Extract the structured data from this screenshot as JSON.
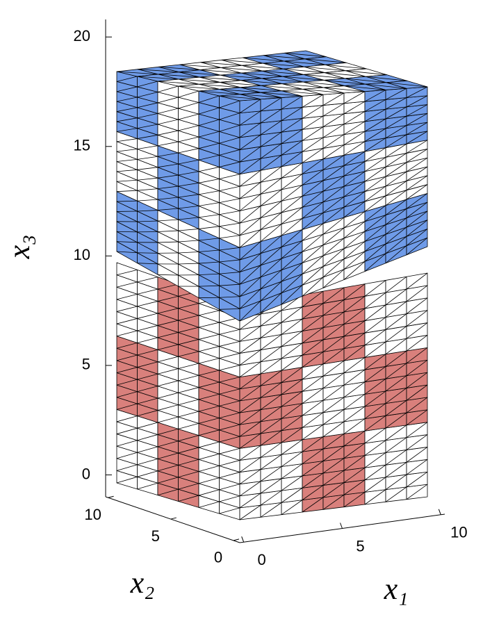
{
  "chart_data": {
    "type": "mesh3d",
    "xlabel": "x₁",
    "ylabel": "x₂",
    "zlabel": "x₃",
    "xlim": [
      -0.2,
      10.2
    ],
    "xticks": [
      0,
      5,
      10
    ],
    "ylim": [
      -0.5,
      10.2
    ],
    "yticks": [
      0,
      5,
      10
    ],
    "zlim": [
      -1,
      20.8
    ],
    "zticks": [
      0,
      5,
      10,
      15,
      20
    ],
    "upper_block_color": "#6f9be8",
    "lower_block_color": "#d9807c"
  }
}
